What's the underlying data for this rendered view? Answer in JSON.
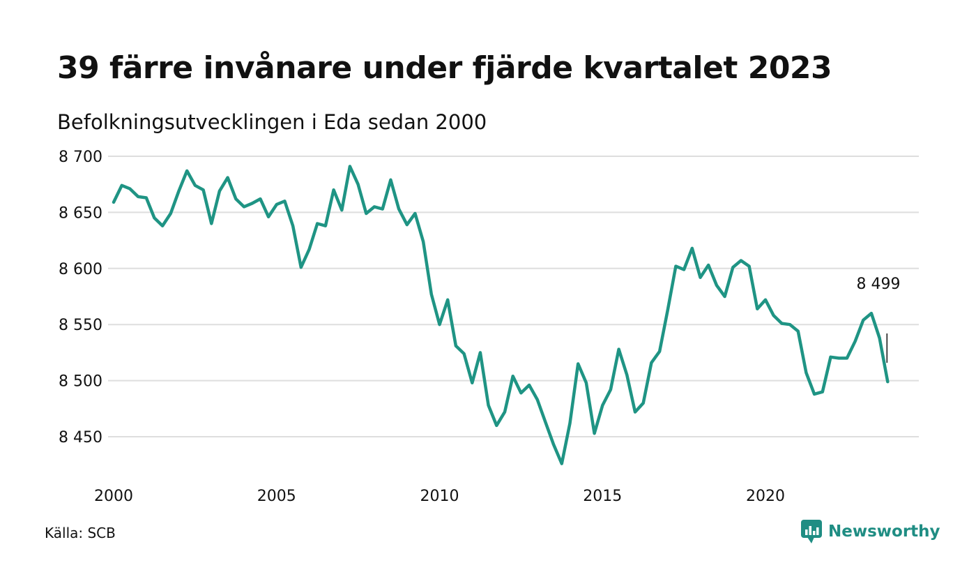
{
  "title": "39 färre invånare under fjärde kvartalet 2023",
  "subtitle": "Befolkningsutvecklingen i Eda sedan 2000",
  "source": "Källa: SCB",
  "logo": {
    "text": "Newsworthy",
    "icon": "newsworthy-chat-chart-icon"
  },
  "colors": {
    "line": "#1f9484",
    "grid": "#dedede",
    "text": "#111111",
    "logo": "#1f8d83"
  },
  "chart_data": {
    "type": "line",
    "title": "39 färre invånare under fjärde kvartalet 2023",
    "subtitle": "Befolkningsutvecklingen i Eda sedan 2000",
    "xlabel": "",
    "ylabel": "",
    "x_ticks": [
      "2000",
      "2005",
      "2010",
      "2015",
      "2020"
    ],
    "y_ticks": [
      8450,
      8500,
      8550,
      8600,
      8650,
      8700
    ],
    "y_tick_labels": [
      "8 450",
      "8 500",
      "8 550",
      "8 600",
      "8 650",
      "8 700"
    ],
    "ylim": [
      8420,
      8700
    ],
    "xlim": [
      2000.0,
      2024.5
    ],
    "grid": true,
    "annotation": {
      "label": "8 499",
      "value": 8499,
      "x": 2023.75
    },
    "series": [
      {
        "x_start": 2000.0,
        "x_step": 0.25,
        "values": [
          8659,
          8674,
          8671,
          8664,
          8663,
          8645,
          8638,
          8649,
          8669,
          8687,
          8674,
          8670,
          8640,
          8669,
          8681,
          8662,
          8655,
          8658,
          8662,
          8646,
          8657,
          8660,
          8638,
          8601,
          8617,
          8640,
          8638,
          8670,
          8652,
          8691,
          8675,
          8649,
          8655,
          8653,
          8679,
          8653,
          8639,
          8649,
          8624,
          8577,
          8550,
          8572,
          8531,
          8524,
          8498,
          8525,
          8478,
          8460,
          8472,
          8504,
          8489,
          8496,
          8483,
          8463,
          8443,
          8426,
          8462,
          8515,
          8498,
          8453,
          8478,
          8492,
          8528,
          8505,
          8472,
          8480,
          8516,
          8526,
          8563,
          8602,
          8599,
          8618,
          8592,
          8603,
          8585,
          8575,
          8601,
          8607,
          8602,
          8564,
          8572,
          8558,
          8551,
          8550,
          8544,
          8507,
          8488,
          8490,
          8521,
          8520,
          8520,
          8535,
          8554,
          8560,
          8538,
          8499
        ]
      }
    ]
  }
}
